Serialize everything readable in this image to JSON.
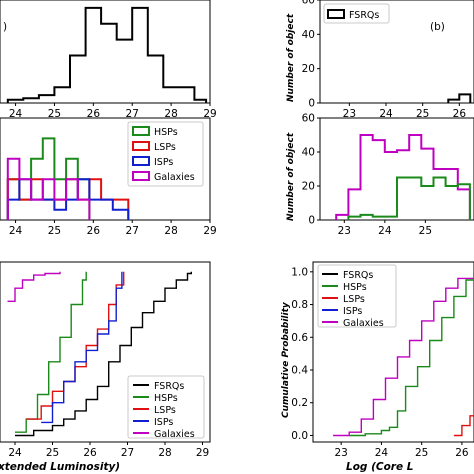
{
  "colors": {
    "FSRQs": "#000000",
    "HSPs": "#1a8a1a",
    "LSPs": "#e01010",
    "ISPs": "#1020d0",
    "Galaxies": "#c000c0"
  },
  "chart_data": [
    {
      "id": "a",
      "type": "histogram",
      "panel_label": ")",
      "x_ticks": [
        "24",
        "25",
        "26",
        "27",
        "28",
        "29"
      ],
      "series": [
        {
          "name": "FSRQs",
          "color_key": "FSRQs",
          "edges": [
            23.8,
            24.2,
            24.6,
            25.0,
            25.4,
            25.8,
            26.2,
            26.6,
            27.0,
            27.4,
            27.8,
            28.2,
            28.6,
            28.9
          ],
          "counts": [
            0.2,
            0.3,
            0.5,
            1,
            3,
            6,
            5,
            4,
            6,
            3,
            1,
            1,
            0.2
          ]
        }
      ]
    },
    {
      "id": "b",
      "type": "histogram",
      "panel_label": "(b)",
      "y_ticks": [
        "0",
        "20",
        "40",
        "60"
      ],
      "x_ticks": [
        "23",
        "24",
        "25",
        "26"
      ],
      "ylabel": "Number of object",
      "legend": [
        "FSRQs"
      ],
      "series": [
        {
          "name": "FSRQs",
          "color_key": "FSRQs",
          "edges": [
            25.7,
            26.0,
            26.3
          ],
          "counts": [
            2,
            5
          ]
        }
      ]
    },
    {
      "id": "c",
      "type": "histogram",
      "x_ticks": [
        "24",
        "25",
        "26",
        "27",
        "28",
        "29"
      ],
      "legend": [
        "HSPs",
        "LSPs",
        "ISPs",
        "Galaxies"
      ],
      "series": [
        {
          "name": "HSPs",
          "color_key": "HSPs",
          "edges": [
            23.8,
            24.1,
            24.4,
            24.7,
            25.0,
            25.3,
            25.6,
            25.9
          ],
          "counts": [
            2,
            1,
            3,
            4,
            2,
            3,
            2
          ]
        },
        {
          "name": "LSPs",
          "color_key": "LSPs",
          "edges": [
            23.8,
            24.1,
            24.4,
            24.7,
            25.0,
            25.3,
            25.6,
            25.9,
            26.2,
            26.5,
            26.9
          ],
          "counts": [
            2,
            1,
            2,
            1,
            1,
            2,
            1,
            2,
            1,
            1
          ]
        },
        {
          "name": "ISPs",
          "color_key": "ISPs",
          "edges": [
            23.8,
            24.1,
            24.4,
            24.7,
            25.0,
            25.3,
            25.6,
            25.9,
            26.2,
            26.5,
            26.9
          ],
          "counts": [
            1,
            2,
            1,
            1,
            0.5,
            1,
            2,
            1,
            1,
            0.5
          ]
        },
        {
          "name": "Galaxies",
          "color_key": "Galaxies",
          "edges": [
            23.8,
            24.1,
            24.4,
            24.7,
            25.0,
            25.3,
            25.6,
            25.9
          ],
          "counts": [
            3,
            2,
            1,
            2,
            1,
            2,
            1
          ]
        }
      ]
    },
    {
      "id": "d",
      "type": "histogram",
      "y_ticks": [
        "0",
        "20",
        "40",
        "60"
      ],
      "x_ticks": [
        "23",
        "24",
        "25"
      ],
      "ylabel": "Number of object",
      "series": [
        {
          "name": "Galaxies",
          "color_key": "Galaxies",
          "edges": [
            22.8,
            23.1,
            23.4,
            23.7,
            24.0,
            24.3,
            24.6,
            24.9,
            25.2,
            25.5,
            25.8,
            26.1
          ],
          "counts": [
            3,
            18,
            50,
            47,
            40,
            41,
            50,
            42,
            30,
            30,
            18
          ]
        },
        {
          "name": "HSPs",
          "color_key": "HSPs",
          "edges": [
            23.1,
            23.4,
            23.7,
            24.0,
            24.3,
            24.6,
            24.9,
            25.2,
            25.5,
            25.8,
            26.1
          ],
          "counts": [
            2,
            3,
            2,
            2,
            25,
            25,
            20,
            25,
            20,
            21
          ]
        }
      ]
    },
    {
      "id": "e",
      "type": "line",
      "x_ticks": [
        "24",
        "25",
        "26",
        "27",
        "28",
        "29"
      ],
      "xlabel": "xtended Luminosity)",
      "legend": [
        "FSRQs",
        "HSPs",
        "LSPs",
        "ISPs",
        "Galaxies"
      ],
      "series": [
        {
          "name": "Galaxies",
          "color_key": "Galaxies",
          "x": [
            23.8,
            24.0,
            24.2,
            24.5,
            24.8,
            25.2
          ],
          "y": [
            0.82,
            0.9,
            0.95,
            0.98,
            0.99,
            1.0
          ]
        },
        {
          "name": "HSPs",
          "color_key": "HSPs",
          "x": [
            24.0,
            24.3,
            24.6,
            24.9,
            25.2,
            25.5,
            25.8,
            25.9
          ],
          "y": [
            0.02,
            0.1,
            0.25,
            0.45,
            0.6,
            0.8,
            0.95,
            1.0
          ]
        },
        {
          "name": "LSPs",
          "color_key": "LSPs",
          "x": [
            24.3,
            24.7,
            25.0,
            25.3,
            25.6,
            25.9,
            26.2,
            26.5,
            26.7,
            26.9
          ],
          "y": [
            0.1,
            0.18,
            0.27,
            0.33,
            0.42,
            0.55,
            0.65,
            0.8,
            0.92,
            1.0
          ]
        },
        {
          "name": "ISPs",
          "color_key": "ISPs",
          "x": [
            24.7,
            25.0,
            25.3,
            25.6,
            25.9,
            26.2,
            26.5,
            26.7,
            26.85
          ],
          "y": [
            0.08,
            0.2,
            0.33,
            0.45,
            0.52,
            0.62,
            0.7,
            0.9,
            1.0
          ]
        },
        {
          "name": "FSRQs",
          "color_key": "FSRQs",
          "x": [
            24.0,
            24.5,
            25.0,
            25.3,
            25.6,
            25.9,
            26.2,
            26.5,
            26.8,
            27.1,
            27.4,
            27.7,
            28.0,
            28.3,
            28.6,
            28.7
          ],
          "y": [
            0.0,
            0.03,
            0.06,
            0.1,
            0.15,
            0.22,
            0.3,
            0.45,
            0.55,
            0.66,
            0.75,
            0.82,
            0.9,
            0.95,
            0.99,
            1.0
          ]
        }
      ]
    },
    {
      "id": "f",
      "type": "line",
      "y_ticks": [
        "0.0",
        "0.2",
        "0.4",
        "0.6",
        "0.8",
        "1.0"
      ],
      "x_ticks": [
        "23",
        "24",
        "25",
        "26"
      ],
      "ylabel": "Cumulative Probability",
      "xlabel": "Log (Core L",
      "legend": [
        "FSRQs",
        "HSPs",
        "LSPs",
        "ISPs",
        "Galaxies"
      ],
      "series": [
        {
          "name": "Galaxies",
          "color_key": "Galaxies",
          "x": [
            22.8,
            23.2,
            23.5,
            23.8,
            24.1,
            24.4,
            24.7,
            25.0,
            25.3,
            25.6,
            25.9,
            26.3
          ],
          "y": [
            0.0,
            0.02,
            0.1,
            0.22,
            0.35,
            0.48,
            0.58,
            0.7,
            0.82,
            0.9,
            0.96,
            1.0
          ]
        },
        {
          "name": "HSPs",
          "color_key": "HSPs",
          "x": [
            23.2,
            23.6,
            24.0,
            24.2,
            24.4,
            24.6,
            24.9,
            25.2,
            25.5,
            25.8,
            26.1,
            26.3
          ],
          "y": [
            0.0,
            0.01,
            0.03,
            0.05,
            0.15,
            0.3,
            0.42,
            0.58,
            0.72,
            0.85,
            0.95,
            1.0
          ]
        },
        {
          "name": "LSPs",
          "color_key": "LSPs",
          "x": [
            25.8,
            26.0,
            26.2,
            26.35
          ],
          "y": [
            0.0,
            0.06,
            0.12,
            0.17
          ]
        }
      ]
    }
  ]
}
